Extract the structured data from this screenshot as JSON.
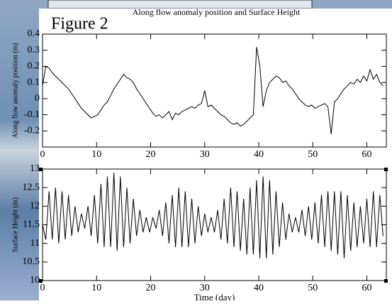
{
  "header": {
    "banner": "Along flow anomaly position and Surface Height",
    "figure_label": "Figure 2"
  },
  "chart_data": [
    {
      "type": "line",
      "ylabel": "Along flow anomaly position (m)",
      "x": [
        0,
        0.6,
        1.2,
        1.8,
        2.4,
        3,
        3.6,
        4.2,
        4.8,
        5.4,
        6,
        6.6,
        7.2,
        7.8,
        8.4,
        9,
        9.6,
        10.2,
        10.8,
        11.4,
        12,
        12.6,
        13.2,
        13.8,
        14.4,
        15,
        15.6,
        16.2,
        16.8,
        17.4,
        18,
        18.6,
        19.2,
        19.8,
        20.4,
        21,
        21.6,
        22.2,
        22.8,
        23.4,
        24,
        24.6,
        25.2,
        25.8,
        26.4,
        27,
        27.6,
        28.2,
        28.8,
        29.4,
        30,
        30.6,
        31.2,
        31.8,
        32.4,
        33,
        33.6,
        34.2,
        34.8,
        35.4,
        36,
        36.6,
        37.2,
        37.8,
        38.4,
        39,
        39.6,
        40.2,
        40.8,
        41.4,
        42,
        42.6,
        43.2,
        43.8,
        44.4,
        45,
        45.6,
        46.2,
        46.8,
        47.4,
        48,
        48.6,
        49.2,
        49.8,
        50.4,
        51,
        51.6,
        52.2,
        52.8,
        53.4,
        54,
        54.6,
        55.2,
        55.8,
        56.4,
        57,
        57.6,
        58.2,
        58.8,
        59.4,
        60,
        60.6,
        61.2,
        61.8,
        62.4,
        63
      ],
      "series": [
        {
          "color": "#000000",
          "values": [
            0.08,
            0.2,
            0.19,
            0.16,
            0.14,
            0.12,
            0.1,
            0.08,
            0.06,
            0.03,
            0.0,
            -0.03,
            -0.06,
            -0.08,
            -0.1,
            -0.12,
            -0.11,
            -0.1,
            -0.07,
            -0.04,
            -0.02,
            0.02,
            0.06,
            0.09,
            0.12,
            0.15,
            0.13,
            0.12,
            0.1,
            0.06,
            0.03,
            0.0,
            -0.03,
            -0.06,
            -0.09,
            -0.11,
            -0.1,
            -0.12,
            -0.1,
            -0.08,
            -0.13,
            -0.09,
            -0.1,
            -0.08,
            -0.07,
            -0.06,
            -0.05,
            -0.06,
            -0.04,
            -0.03,
            0.05,
            -0.05,
            -0.04,
            -0.06,
            -0.08,
            -0.1,
            -0.11,
            -0.13,
            -0.15,
            -0.16,
            -0.15,
            -0.17,
            -0.16,
            -0.14,
            -0.12,
            -0.1,
            0.32,
            0.2,
            -0.05,
            0.05,
            0.1,
            0.12,
            0.14,
            0.13,
            0.1,
            0.11,
            0.08,
            0.06,
            0.03,
            0.0,
            -0.02,
            -0.04,
            -0.05,
            -0.04,
            -0.06,
            -0.05,
            -0.04,
            -0.03,
            -0.05,
            -0.22,
            -0.02,
            0.0,
            0.03,
            0.06,
            0.08,
            0.1,
            0.09,
            0.12,
            0.1,
            0.14,
            0.11,
            0.18,
            0.12,
            0.15,
            0.1,
            0.08
          ]
        }
      ],
      "xlim": [
        0,
        63.6
      ],
      "ylim": [
        -0.3,
        0.4
      ],
      "xticks": [
        0,
        10,
        20,
        30,
        40,
        50,
        60
      ],
      "yticks": [
        -0.2,
        -0.1,
        0,
        0.1,
        0.2,
        0.3,
        0.4
      ]
    },
    {
      "type": "line",
      "ylabel": "Surface Height (m)",
      "xlabel": "Time (day)",
      "x": [
        0,
        0.6,
        1.2,
        1.8,
        2.4,
        3,
        3.6,
        4.2,
        4.8,
        5.4,
        6,
        6.6,
        7.2,
        7.8,
        8.4,
        9,
        9.6,
        10.2,
        10.8,
        11.4,
        12,
        12.6,
        13.2,
        13.8,
        14.4,
        15,
        15.6,
        16.2,
        16.8,
        17.4,
        18,
        18.6,
        19.2,
        19.8,
        20.4,
        21,
        21.6,
        22.2,
        22.8,
        23.4,
        24,
        24.6,
        25.2,
        25.8,
        26.4,
        27,
        27.6,
        28.2,
        28.8,
        29.4,
        30,
        30.6,
        31.2,
        31.8,
        32.4,
        33,
        33.6,
        34.2,
        34.8,
        35.4,
        36,
        36.6,
        37.2,
        37.8,
        38.4,
        39,
        39.6,
        40.2,
        40.8,
        41.4,
        42,
        42.6,
        43.2,
        43.8,
        44.4,
        45,
        45.6,
        46.2,
        46.8,
        47.4,
        48,
        48.6,
        49.2,
        49.8,
        50.4,
        51,
        51.6,
        52.2,
        52.8,
        53.4,
        54,
        54.6,
        55.2,
        55.8,
        56.4,
        57,
        57.6,
        58.2,
        58.8,
        59.4,
        60,
        60.6,
        61.2,
        61.8,
        62.4,
        63
      ],
      "series": [
        {
          "color": "#000000",
          "values": [
            11.5,
            11.1,
            12.4,
            11.1,
            12.5,
            11.0,
            12.4,
            11.1,
            12.3,
            11.2,
            12.0,
            11.3,
            11.8,
            11.4,
            12.0,
            11.2,
            12.3,
            11.0,
            12.6,
            10.9,
            12.8,
            10.9,
            12.9,
            10.8,
            12.8,
            10.9,
            12.5,
            11.0,
            12.2,
            11.2,
            11.9,
            11.3,
            11.7,
            11.3,
            11.7,
            11.4,
            11.9,
            11.2,
            12.1,
            11.0,
            12.3,
            10.9,
            12.5,
            10.9,
            12.4,
            10.9,
            12.2,
            11.0,
            12.0,
            11.2,
            11.8,
            11.3,
            11.7,
            11.3,
            11.9,
            11.1,
            12.2,
            11.0,
            12.5,
            10.9,
            12.4,
            10.8,
            12.2,
            10.7,
            12.5,
            10.7,
            12.7,
            10.6,
            12.8,
            10.6,
            12.7,
            10.7,
            12.4,
            10.9,
            12.1,
            11.1,
            11.8,
            11.3,
            11.7,
            11.3,
            11.9,
            11.2,
            12.0,
            11.1,
            12.1,
            11.0,
            12.3,
            10.9,
            12.4,
            10.8,
            12.4,
            10.7,
            12.4,
            10.6,
            12.3,
            10.8,
            12.1,
            10.9,
            12.0,
            11.0,
            12.2,
            10.9,
            12.4,
            10.9,
            12.3,
            11.2
          ]
        }
      ],
      "xlim": [
        0,
        63.6
      ],
      "ylim": [
        10,
        13
      ],
      "xticks": [
        0,
        10,
        20,
        30,
        40,
        50,
        60
      ],
      "yticks": [
        10,
        10.5,
        11,
        11.5,
        12,
        12.5,
        13
      ]
    }
  ]
}
